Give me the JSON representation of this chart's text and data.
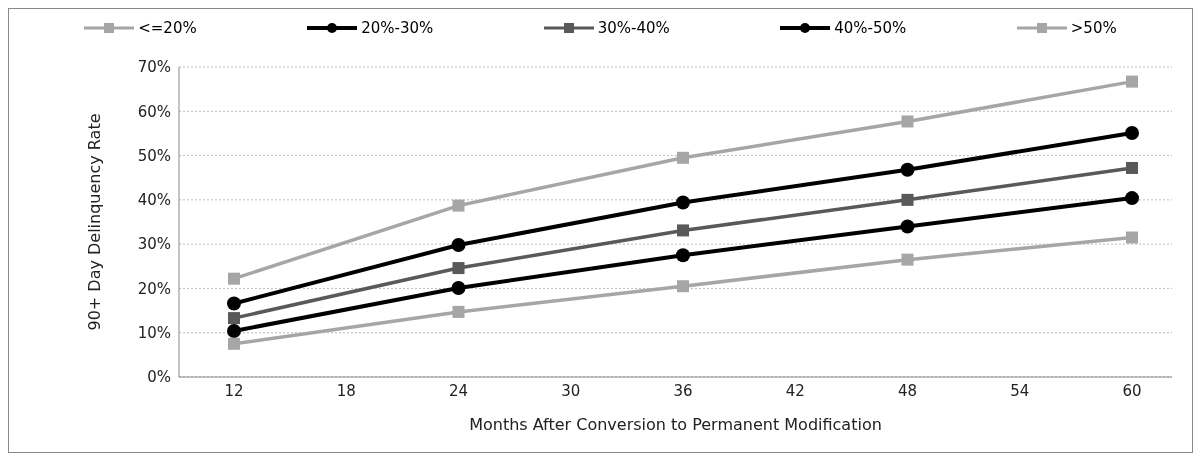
{
  "chart_data": {
    "type": "line",
    "xlabel": "Months After Conversion to Permanent Modification",
    "ylabel": "90+ Day Delinquency Rate",
    "categories": [
      "12",
      "18",
      "24",
      "30",
      "36",
      "42",
      "48",
      "54",
      "60"
    ],
    "ylim": [
      0,
      0.7
    ],
    "yticks": [
      {
        "value": 0,
        "label": "0%"
      },
      {
        "value": 0.1,
        "label": "10%"
      },
      {
        "value": 0.2,
        "label": "20%"
      },
      {
        "value": 0.3,
        "label": "30%"
      },
      {
        "value": 0.4,
        "label": "40%"
      },
      {
        "value": 0.5,
        "label": "50%"
      },
      {
        "value": 0.6,
        "label": "60%"
      },
      {
        "value": 0.7,
        "label": "70%"
      }
    ],
    "grid": "y",
    "legend": "top",
    "series": [
      {
        "name": "<=20%",
        "color": "#a6a6a6",
        "marker": "square",
        "values": [
          0.222,
          null,
          0.387,
          null,
          0.495,
          null,
          0.577,
          null,
          0.667
        ]
      },
      {
        "name": "20%-30%",
        "color": "#000000",
        "marker": "circle",
        "values": [
          0.166,
          null,
          0.298,
          null,
          0.394,
          null,
          0.468,
          null,
          0.551
        ]
      },
      {
        "name": "30%-40%",
        "color": "#595959",
        "marker": "square",
        "values": [
          0.133,
          null,
          0.246,
          null,
          0.331,
          null,
          0.4,
          null,
          0.472
        ]
      },
      {
        "name": "40%-50%",
        "color": "#000000",
        "marker": "circle",
        "values": [
          0.104,
          null,
          0.201,
          null,
          0.275,
          null,
          0.34,
          null,
          0.404
        ]
      },
      {
        "name": ">50%",
        "color": "#a6a6a6",
        "marker": "square",
        "values": [
          0.075,
          null,
          0.147,
          null,
          0.205,
          null,
          0.265,
          null,
          0.315
        ]
      }
    ]
  }
}
